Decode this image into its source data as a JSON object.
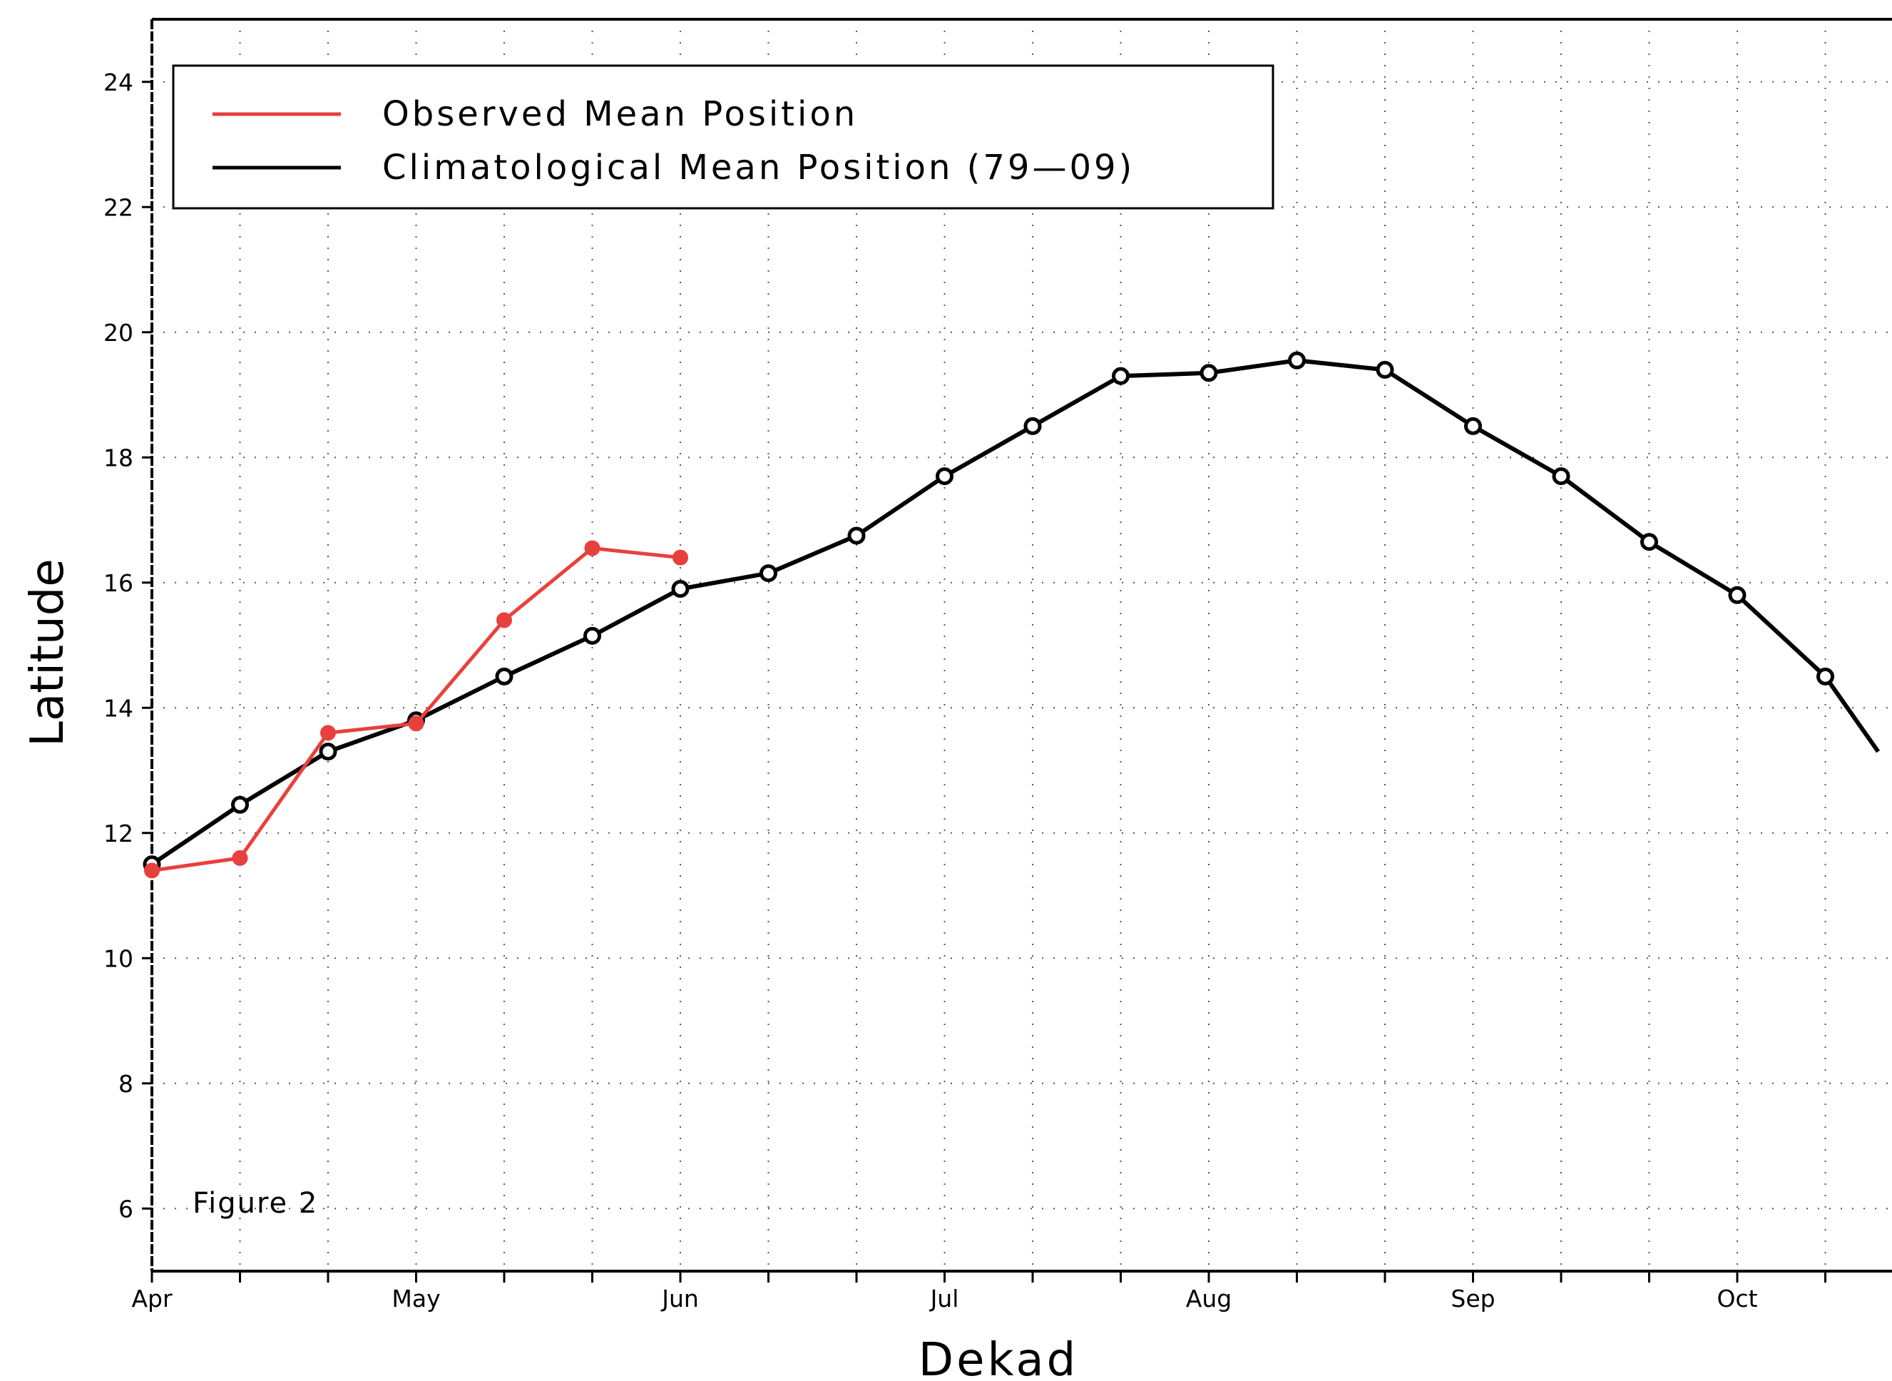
{
  "chart_data": {
    "type": "line",
    "xlabel": "Dekad",
    "ylabel": "Latitude",
    "ylim": [
      5,
      25
    ],
    "yticks": [
      6,
      8,
      10,
      12,
      14,
      16,
      18,
      20,
      22,
      24
    ],
    "xlim": [
      0,
      19.6
    ],
    "month_ticks": [
      {
        "label": "Apr",
        "dekad": 0
      },
      {
        "label": "May",
        "dekad": 3
      },
      {
        "label": "Jun",
        "dekad": 6
      },
      {
        "label": "Jul",
        "dekad": 9
      },
      {
        "label": "Aug",
        "dekad": 12
      },
      {
        "label": "Sep",
        "dekad": 15
      },
      {
        "label": "Oct",
        "dekad": 18
      }
    ],
    "grid": true,
    "legend_position": "top-left",
    "annotation": "Figure 2",
    "series": [
      {
        "name": "Observed Mean Position",
        "color": "#e8403c",
        "marker": "filled-circle",
        "x": [
          0,
          1,
          2,
          3,
          4,
          5,
          6
        ],
        "y": [
          11.4,
          11.6,
          13.6,
          13.75,
          15.4,
          16.55,
          16.4
        ]
      },
      {
        "name": "Climatological Mean Position (79—09)",
        "color": "#000000",
        "marker": "open-circle",
        "x": [
          0,
          1,
          2,
          3,
          4,
          5,
          6,
          7,
          8,
          9,
          10,
          11,
          12,
          13,
          14,
          15,
          16,
          17,
          18,
          19,
          19.6
        ],
        "y": [
          11.5,
          12.45,
          13.3,
          13.8,
          14.5,
          15.15,
          15.9,
          16.15,
          16.75,
          17.7,
          18.5,
          19.3,
          19.35,
          19.55,
          19.4,
          18.5,
          17.7,
          16.65,
          15.8,
          14.5,
          13.3
        ]
      }
    ]
  }
}
